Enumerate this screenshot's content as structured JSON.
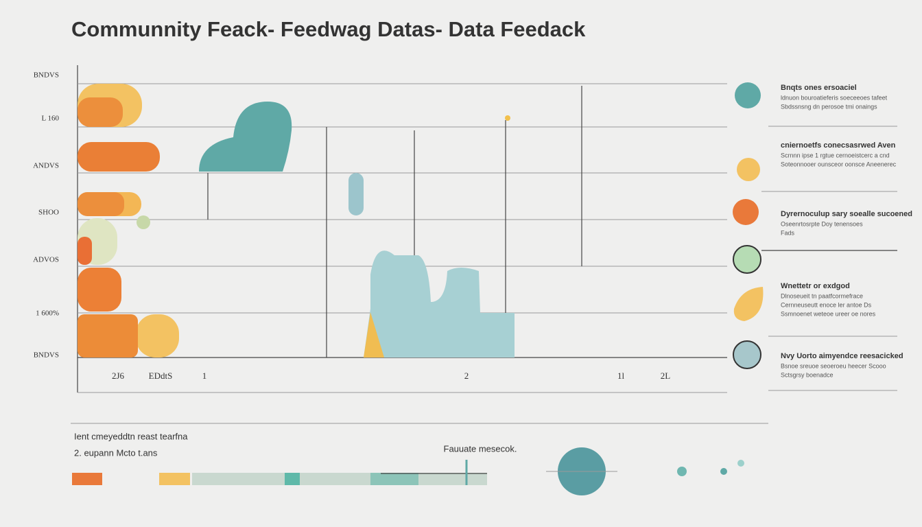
{
  "header": {
    "title": "Communnity Feack- Feedwag Datas- Data Feedack"
  },
  "y_labels": [
    "BNDVS",
    "L 160",
    "ANDVS",
    "SHOO",
    "ADVOS",
    "1 600%",
    "BNDVS"
  ],
  "x_labels": [
    "2J6",
    "EDdtS",
    "1",
    "2",
    "1l",
    "2L"
  ],
  "legend": {
    "items": [
      {
        "title": "Bnqts ones ersoaciel",
        "lines": [
          "ldnuon bouroatieferis soeceeoes tafeet",
          "Sbdssnsng dn perosoe tmi onaings"
        ]
      },
      {
        "title": "cniernoetfs conecsasrwed Aven",
        "lines": [
          "Scrnnn ipse 1 rgtue cernoeistcerc a cnd",
          "Soteonnooer ounsceor oonsce Aneenerec"
        ]
      },
      {
        "title": "Dyrernoculup sary soealle sucoened",
        "lines": [
          "Oseenrtosrpte Doy tenensoes",
          "Fads"
        ]
      },
      {
        "title": "Wnettetr or exdgod",
        "lines": [
          "Dlnoseueit tn paatfcormefrace",
          "Cernneuseutt enoce ler antoe Ds",
          "Ssmnoenet weteoe ureer oe nores"
        ]
      },
      {
        "title": "Nvy Uorto aimyendce reesacicked",
        "lines": [
          "Bsnoe sreuoe seoeroeu heecer Scooo",
          "Sctsgrsy boenadce"
        ]
      }
    ]
  },
  "footer": {
    "lines": [
      "Ient cmeyeddtn reast tearfna",
      "2. eupann Mcto t.ans"
    ],
    "caption": "Fauuate mesecok."
  }
}
